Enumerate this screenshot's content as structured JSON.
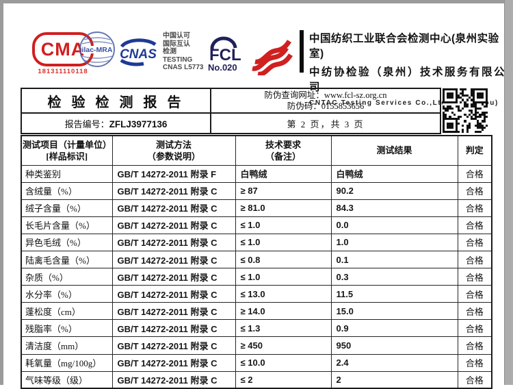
{
  "colors": {
    "cma_red": "#d01f1f",
    "stamp_blue": "#4a5fa5",
    "cnas_blue": "#1e3a96",
    "fcl_navy": "#20205a",
    "stripe_red": "#d02020",
    "edge_gray": "#9b9b9b",
    "border_black": "#1b1b1b"
  },
  "logos": {
    "cma": {
      "text": "CMA",
      "number": "181311110118"
    },
    "ilac": {
      "text": "ilac-MRA"
    },
    "cnas": {
      "text": "CNAS"
    },
    "accreditation": {
      "lines": [
        "中国认可",
        "国际互认",
        "检测",
        "TESTING",
        "CNAS L5773"
      ]
    },
    "fcl": {
      "text": "FCL",
      "number": "No.020"
    }
  },
  "org": {
    "line1": "中国纺织工业联合会检测中心(泉州实验室)",
    "line2": "中纺协检验（泉州）技术服务有限公司",
    "line3": "CNTAC Testing Services Co.,Ltd.(Quanzhou)"
  },
  "report_header": {
    "title": "检 验 检 测 报 告",
    "report_no_label": "报告编号：",
    "report_no": "ZFLJ3977136",
    "antifake_line1": "防伪查询网址：www.fcl-sz.org.cn",
    "antifake_line2": "防伪码：0155853656",
    "page_info": "第 2 页，共 3 页"
  },
  "table": {
    "headers": {
      "col1_line1": "测试项目（计量单位）",
      "col1_line2": "[样品标识]",
      "col2_line1": "测试方法",
      "col2_line2": "（参数说明）",
      "col3_line1": "技术要求",
      "col3_line2": "（备注）",
      "col4": "测试结果",
      "col5": "判定"
    },
    "rows": [
      {
        "item": "种类鉴别",
        "method": "GB/T 14272-2011  附录 F",
        "requirement": "白鸭绒",
        "result": "白鸭绒",
        "verdict": "合格"
      },
      {
        "item": "含绒量（%）",
        "method": "GB/T 14272-2011  附录 C",
        "requirement": "≥ 87",
        "result": "90.2",
        "verdict": "合格"
      },
      {
        "item": "绒子含量（%）",
        "method": "GB/T 14272-2011  附录 C",
        "requirement": "≥ 81.0",
        "result": "84.3",
        "verdict": "合格"
      },
      {
        "item": "长毛片含量（%）",
        "method": "GB/T 14272-2011  附录 C",
        "requirement": "≤ 1.0",
        "result": "0.0",
        "verdict": "合格"
      },
      {
        "item": "异色毛绒（%）",
        "method": "GB/T 14272-2011  附录 C",
        "requirement": "≤ 1.0",
        "result": "1.0",
        "verdict": "合格"
      },
      {
        "item": "陆禽毛含量（%）",
        "method": "GB/T 14272-2011  附录 C",
        "requirement": "≤ 0.8",
        "result": "0.1",
        "verdict": "合格"
      },
      {
        "item": "杂质（%）",
        "method": "GB/T 14272-2011  附录 C",
        "requirement": "≤ 1.0",
        "result": "0.3",
        "verdict": "合格"
      },
      {
        "item": "水分率（%）",
        "method": "GB/T 14272-2011  附录 C",
        "requirement": "≤ 13.0",
        "result": "11.5",
        "verdict": "合格"
      },
      {
        "item": "蓬松度（cm）",
        "method": "GB/T 14272-2011  附录 C",
        "requirement": "≥ 14.0",
        "result": "15.0",
        "verdict": "合格"
      },
      {
        "item": "残脂率（%）",
        "method": "GB/T 14272-2011  附录 C",
        "requirement": "≤ 1.3",
        "result": "0.9",
        "verdict": "合格"
      },
      {
        "item": "清洁度（mm）",
        "method": "GB/T 14272-2011  附录 C",
        "requirement": "≥ 450",
        "result": "950",
        "verdict": "合格"
      },
      {
        "item": "耗氧量（mg/100g）",
        "method": "GB/T 14272-2011  附录 C",
        "requirement": "≤ 10.0",
        "result": "2.4",
        "verdict": "合格"
      },
      {
        "item": "气味等级（级）",
        "method": "GB/T 14272-2011  附录 C",
        "requirement": "≤ 2",
        "result": "2",
        "verdict": "合格"
      }
    ]
  }
}
